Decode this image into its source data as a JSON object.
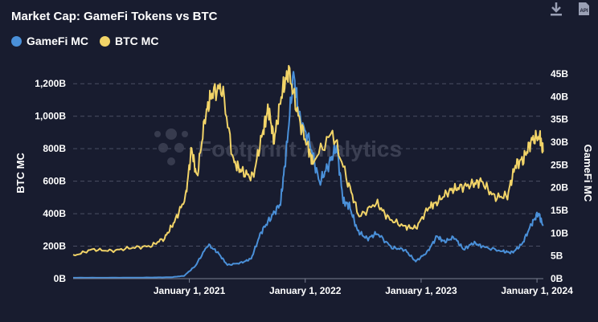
{
  "header": {
    "title": "Market Cap: GameFi Tokens vs BTC",
    "download_icon": "download-icon",
    "api_icon_text": "API"
  },
  "legend": {
    "items": [
      {
        "label": "GameFi MC",
        "color": "#4a90d9"
      },
      {
        "label": "BTC MC",
        "color": "#f2d468"
      }
    ]
  },
  "watermark": "Footprint Analytics",
  "chart_data": {
    "type": "line",
    "title": "Market Cap: GameFi Tokens vs BTC",
    "x_ticks": [
      "January 1, 2021",
      "January 1, 2022",
      "January 1, 2023",
      "January 1, 2024"
    ],
    "xlim": [
      "2020-01-01",
      "2024-01-21"
    ],
    "y_left": {
      "label": "BTC MC",
      "lim": [
        0,
        1300
      ],
      "ticks": [
        "0B",
        "200B",
        "400B",
        "600B",
        "800B",
        "1,000B",
        "1,200B"
      ],
      "tick_values": [
        0,
        200,
        400,
        600,
        800,
        1000,
        1200
      ]
    },
    "y_right": {
      "label": "GameFi MC",
      "lim": [
        0,
        46.4
      ],
      "ticks": [
        "0B",
        "5B",
        "10B",
        "15B",
        "20B",
        "25B",
        "30B",
        "35B",
        "40B",
        "45B"
      ],
      "tick_values": [
        0,
        5,
        10,
        15,
        20,
        25,
        30,
        35,
        40,
        45
      ]
    },
    "grid": true,
    "series": [
      {
        "name": "GameFi MC",
        "axis": "right",
        "color": "#4a90d9",
        "x": [
          "2020-01-01",
          "2020-05-01",
          "2020-09-01",
          "2020-11-01",
          "2020-12-15",
          "2021-01-20",
          "2021-03-01",
          "2021-04-01",
          "2021-05-01",
          "2021-06-15",
          "2021-07-15",
          "2021-08-15",
          "2021-09-15",
          "2021-10-15",
          "2021-11-01",
          "2021-11-25",
          "2021-12-15",
          "2022-01-15",
          "2022-02-15",
          "2022-03-15",
          "2022-04-10",
          "2022-05-01",
          "2022-05-20",
          "2022-06-15",
          "2022-07-15",
          "2022-08-15",
          "2022-10-01",
          "2022-11-10",
          "2022-12-15",
          "2023-01-20",
          "2023-02-20",
          "2023-03-15",
          "2023-04-15",
          "2023-05-15",
          "2023-06-15",
          "2023-07-15",
          "2023-09-15",
          "2023-10-15",
          "2023-11-15",
          "2023-12-15",
          "2024-01-05",
          "2024-01-20"
        ],
        "y": [
          0.2,
          0.2,
          0.25,
          0.3,
          0.6,
          2.8,
          7.5,
          5.7,
          3.0,
          3.5,
          4.4,
          10.2,
          13.5,
          16.5,
          27.0,
          45.0,
          35.0,
          30.0,
          21.0,
          25.0,
          29.0,
          17.0,
          16.0,
          10.5,
          8.7,
          10.0,
          6.8,
          6.4,
          3.8,
          5.8,
          9.3,
          8.1,
          9.1,
          6.4,
          7.9,
          7.0,
          6.0,
          5.7,
          7.6,
          12.0,
          14.5,
          11.6
        ]
      },
      {
        "name": "BTC MC",
        "axis": "left",
        "color": "#f2d468",
        "x": [
          "2020-01-01",
          "2020-03-01",
          "2020-05-01",
          "2020-07-01",
          "2020-09-01",
          "2020-10-15",
          "2020-11-15",
          "2020-12-20",
          "2021-01-08",
          "2021-01-25",
          "2021-02-20",
          "2021-03-13",
          "2021-04-14",
          "2021-05-20",
          "2021-06-15",
          "2021-07-20",
          "2021-08-20",
          "2021-09-07",
          "2021-09-25",
          "2021-10-20",
          "2021-11-10",
          "2021-12-10",
          "2022-01-10",
          "2022-01-25",
          "2022-03-28",
          "2022-05-15",
          "2022-06-20",
          "2022-08-13",
          "2022-09-20",
          "2022-11-10",
          "2022-12-15",
          "2023-01-25",
          "2023-02-20",
          "2023-03-30",
          "2023-04-30",
          "2023-06-10",
          "2023-07-10",
          "2023-08-20",
          "2023-09-30",
          "2023-10-25",
          "2023-11-20",
          "2023-12-15",
          "2024-01-10",
          "2024-01-20"
        ],
        "y": [
          140,
          180,
          170,
          190,
          200,
          250,
          350,
          500,
          800,
          620,
          1000,
          1140,
          1180,
          720,
          660,
          620,
          900,
          1050,
          850,
          1150,
          1280,
          1000,
          800,
          720,
          900,
          600,
          380,
          470,
          370,
          320,
          310,
          440,
          470,
          540,
          560,
          580,
          600,
          500,
          510,
          700,
          740,
          850,
          880,
          780
        ]
      }
    ]
  }
}
